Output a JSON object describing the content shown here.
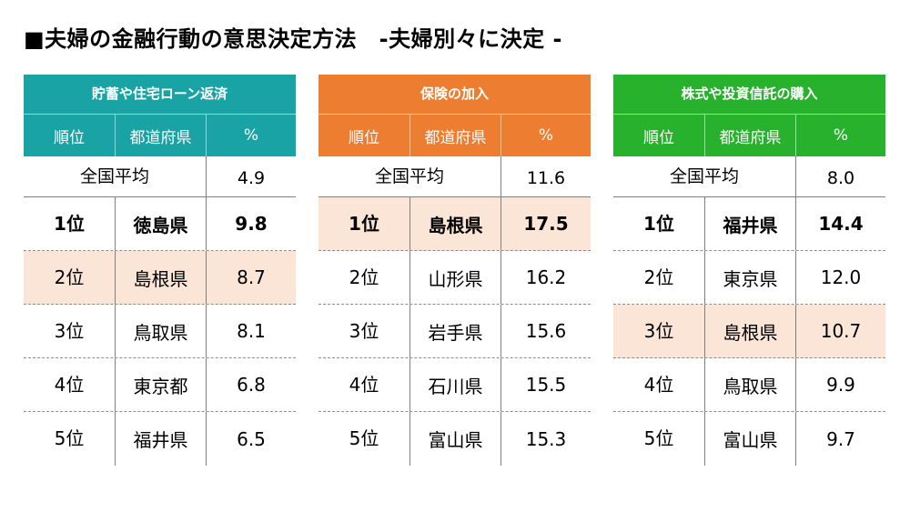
{
  "page": {
    "title": "■夫婦の金融行動の意思決定方法　-夫婦別々に決定 -"
  },
  "colors": {
    "highlight_row": "#fbe5d6",
    "table_header": [
      "#1aa3a5",
      "#ed7d31",
      "#27b12c"
    ]
  },
  "chart_data": {
    "type": "table",
    "columns": [
      "順位",
      "都道府県",
      "%"
    ],
    "tables": [
      {
        "title": "貯蓄や住宅ローン返済",
        "average": {
          "label": "全国平均",
          "value": "4.9"
        },
        "rows": [
          {
            "rank": "1位",
            "pref": "徳島県",
            "value": "9.8"
          },
          {
            "rank": "2位",
            "pref": "島根県",
            "value": "8.7"
          },
          {
            "rank": "3位",
            "pref": "鳥取県",
            "value": "8.1"
          },
          {
            "rank": "4位",
            "pref": "東京都",
            "value": "6.8"
          },
          {
            "rank": "5位",
            "pref": "福井県",
            "value": "6.5"
          }
        ]
      },
      {
        "title": "保険の加入",
        "average": {
          "label": "全国平均",
          "value": "11.6"
        },
        "rows": [
          {
            "rank": "1位",
            "pref": "島根県",
            "value": "17.5"
          },
          {
            "rank": "2位",
            "pref": "山形県",
            "value": "16.2"
          },
          {
            "rank": "3位",
            "pref": "岩手県",
            "value": "15.6"
          },
          {
            "rank": "4位",
            "pref": "石川県",
            "value": "15.5"
          },
          {
            "rank": "5位",
            "pref": "富山県",
            "value": "15.3"
          }
        ]
      },
      {
        "title": "株式や投資信託の購入",
        "average": {
          "label": "全国平均",
          "value": "8.0"
        },
        "rows": [
          {
            "rank": "1位",
            "pref": "福井県",
            "value": "14.4"
          },
          {
            "rank": "2位",
            "pref": "東京県",
            "value": "12.0"
          },
          {
            "rank": "3位",
            "pref": "島根県",
            "value": "10.7"
          },
          {
            "rank": "4位",
            "pref": "鳥取県",
            "value": "9.9"
          },
          {
            "rank": "5位",
            "pref": "富山県",
            "value": "9.7"
          }
        ]
      }
    ]
  }
}
